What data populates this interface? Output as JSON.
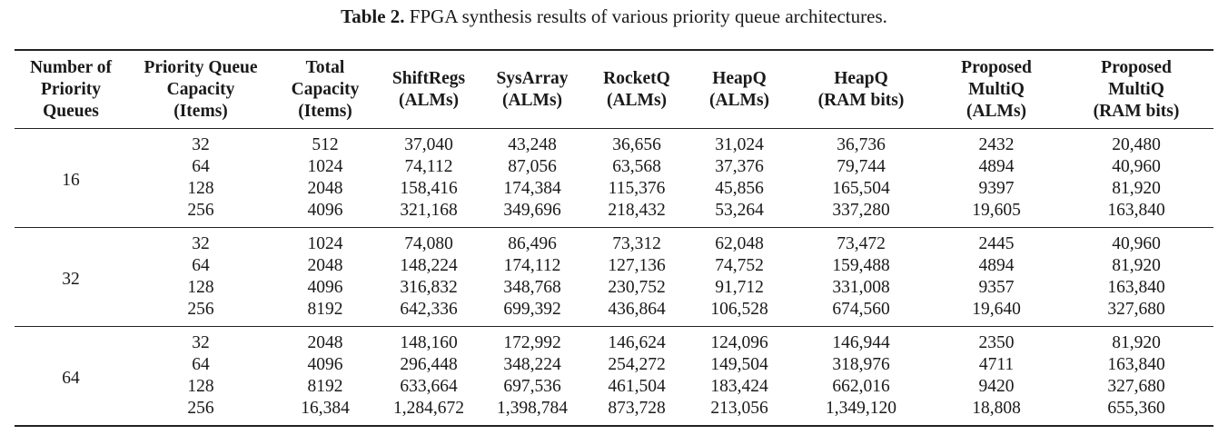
{
  "caption": {
    "lead": "Table 2.",
    "text": "FPGA synthesis results of various priority queue architectures."
  },
  "table": {
    "headers": [
      "Number of\nPriority\nQueues",
      "Priority Queue\nCapacity\n(Items)",
      "Total\nCapacity\n(Items)",
      "ShiftRegs\n(ALMs)",
      "SysArray\n(ALMs)",
      "RocketQ\n(ALMs)",
      "HeapQ\n(ALMs)",
      "HeapQ\n(RAM bits)",
      "Proposed\nMultiQ\n(ALMs)",
      "Proposed\nMultiQ\n(RAM bits)"
    ],
    "groups": [
      {
        "queues": "16",
        "rows": [
          [
            "32",
            "512",
            "37,040",
            "43,248",
            "36,656",
            "31,024",
            "36,736",
            "2432",
            "20,480"
          ],
          [
            "64",
            "1024",
            "74,112",
            "87,056",
            "63,568",
            "37,376",
            "79,744",
            "4894",
            "40,960"
          ],
          [
            "128",
            "2048",
            "158,416",
            "174,384",
            "115,376",
            "45,856",
            "165,504",
            "9397",
            "81,920"
          ],
          [
            "256",
            "4096",
            "321,168",
            "349,696",
            "218,432",
            "53,264",
            "337,280",
            "19,605",
            "163,840"
          ]
        ]
      },
      {
        "queues": "32",
        "rows": [
          [
            "32",
            "1024",
            "74,080",
            "86,496",
            "73,312",
            "62,048",
            "73,472",
            "2445",
            "40,960"
          ],
          [
            "64",
            "2048",
            "148,224",
            "174,112",
            "127,136",
            "74,752",
            "159,488",
            "4894",
            "81,920"
          ],
          [
            "128",
            "4096",
            "316,832",
            "348,768",
            "230,752",
            "91,712",
            "331,008",
            "9357",
            "163,840"
          ],
          [
            "256",
            "8192",
            "642,336",
            "699,392",
            "436,864",
            "106,528",
            "674,560",
            "19,640",
            "327,680"
          ]
        ]
      },
      {
        "queues": "64",
        "rows": [
          [
            "32",
            "2048",
            "148,160",
            "172,992",
            "146,624",
            "124,096",
            "146,944",
            "2350",
            "81,920"
          ],
          [
            "64",
            "4096",
            "296,448",
            "348,224",
            "254,272",
            "149,504",
            "318,976",
            "4711",
            "163,840"
          ],
          [
            "128",
            "8192",
            "633,664",
            "697,536",
            "461,504",
            "183,424",
            "662,016",
            "9420",
            "327,680"
          ],
          [
            "256",
            "16,384",
            "1,284,672",
            "1,398,784",
            "873,728",
            "213,056",
            "1,349,120",
            "18,808",
            "655,360"
          ]
        ]
      }
    ]
  }
}
